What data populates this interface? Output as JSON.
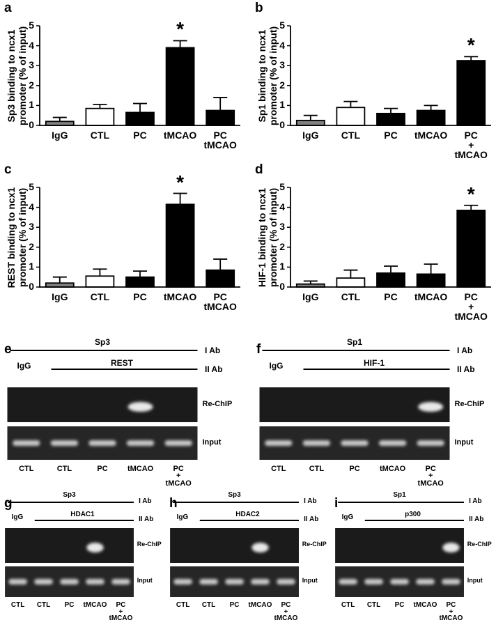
{
  "chart_data": [
    {
      "type": "bar",
      "panel": "a",
      "y_label": "Sp3 binding to ncx1\npromoter (% of  input)",
      "categories": [
        "IgG",
        "CTL",
        "PC",
        "tMCAO",
        "PC\ntMCAO"
      ],
      "values": [
        0.2,
        0.85,
        0.65,
        3.9,
        0.75
      ],
      "errors": [
        0.2,
        0.2,
        0.45,
        0.35,
        0.65
      ],
      "colors": [
        "#808080",
        "#ffffff",
        "#000000",
        "#000000",
        "#000000"
      ],
      "significance": [
        null,
        null,
        null,
        "*",
        null
      ],
      "ylim": [
        0,
        5
      ],
      "yticks": [
        0,
        1,
        2,
        3,
        4,
        5
      ]
    },
    {
      "type": "bar",
      "panel": "b",
      "y_label": "Sp1 binding to ncx1\npromoter (% of  input)",
      "categories": [
        "IgG",
        "CTL",
        "PC",
        "tMCAO",
        "PC\n+\ntMCAO"
      ],
      "values": [
        0.25,
        0.9,
        0.6,
        0.75,
        3.25
      ],
      "errors": [
        0.25,
        0.3,
        0.25,
        0.25,
        0.2
      ],
      "colors": [
        "#808080",
        "#ffffff",
        "#000000",
        "#000000",
        "#000000"
      ],
      "significance": [
        null,
        null,
        null,
        null,
        "*"
      ],
      "ylim": [
        0,
        5
      ],
      "yticks": [
        0,
        1,
        2,
        3,
        4,
        5
      ]
    },
    {
      "type": "bar",
      "panel": "c",
      "y_label": "REST binding to ncx1\npromoter (% of  input)",
      "categories": [
        "IgG",
        "CTL",
        "PC",
        "tMCAO",
        "PC\ntMCAO"
      ],
      "values": [
        0.2,
        0.55,
        0.5,
        4.15,
        0.85
      ],
      "errors": [
        0.3,
        0.35,
        0.3,
        0.55,
        0.55
      ],
      "colors": [
        "#808080",
        "#ffffff",
        "#000000",
        "#000000",
        "#000000"
      ],
      "significance": [
        null,
        null,
        null,
        "*",
        null
      ],
      "ylim": [
        0,
        5
      ],
      "yticks": [
        0,
        1,
        2,
        3,
        4,
        5
      ]
    },
    {
      "type": "bar",
      "panel": "d",
      "y_label": "HIF-1 binding to ncx1\npromoter (% of  input)",
      "categories": [
        "IgG",
        "CTL",
        "PC",
        "tMCAO",
        "PC\n+\ntMCAO"
      ],
      "values": [
        0.15,
        0.45,
        0.7,
        0.65,
        3.85
      ],
      "errors": [
        0.15,
        0.4,
        0.35,
        0.5,
        0.25
      ],
      "colors": [
        "#808080",
        "#ffffff",
        "#000000",
        "#000000",
        "#000000"
      ],
      "significance": [
        null,
        null,
        null,
        null,
        "*"
      ],
      "ylim": [
        0,
        5
      ],
      "yticks": [
        0,
        1,
        2,
        3,
        4,
        5
      ]
    }
  ],
  "gels": [
    {
      "panel": "e",
      "i_ab": "Sp3",
      "i_ab_label": "I Ab",
      "control": "IgG",
      "ii_ab": "REST",
      "ii_ab_label": "II Ab",
      "rechip_label": "Re-ChIP",
      "input_label": "Input",
      "lanes": [
        "CTL",
        "CTL",
        "PC",
        "tMCAO",
        "PC\n+\ntMCAO"
      ]
    },
    {
      "panel": "f",
      "i_ab": "Sp1",
      "i_ab_label": "I Ab",
      "control": "IgG",
      "ii_ab": "HIF-1",
      "ii_ab_label": "II Ab",
      "rechip_label": "Re-ChIP",
      "input_label": "Input",
      "lanes": [
        "CTL",
        "CTL",
        "PC",
        "tMCAO",
        "PC\n+\ntMCAO"
      ]
    },
    {
      "panel": "g",
      "i_ab": "Sp3",
      "i_ab_label": "I Ab",
      "control": "IgG",
      "ii_ab": "HDAC1",
      "ii_ab_label": "II Ab",
      "rechip_label": "Re-ChIP",
      "input_label": "Input",
      "lanes": [
        "CTL",
        "CTL",
        "PC",
        "tMCAO",
        "PC\n+\ntMCAO"
      ]
    },
    {
      "panel": "h",
      "i_ab": "Sp3",
      "i_ab_label": "I Ab",
      "control": "IgG",
      "ii_ab": "HDAC2",
      "ii_ab_label": "II Ab",
      "rechip_label": "Re-ChIP",
      "input_label": "Input",
      "lanes": [
        "CTL",
        "CTL",
        "PC",
        "tMCAO",
        "PC\n+\ntMCAO"
      ]
    },
    {
      "panel": "i",
      "i_ab": "Sp1",
      "i_ab_label": "I Ab",
      "control": "IgG",
      "ii_ab": "p300",
      "ii_ab_label": "II Ab",
      "rechip_label": "Re-ChIP",
      "input_label": "Input",
      "lanes": [
        "CTL",
        "CTL",
        "PC",
        "tMCAO",
        "PC\n+\ntMCAO"
      ]
    }
  ]
}
